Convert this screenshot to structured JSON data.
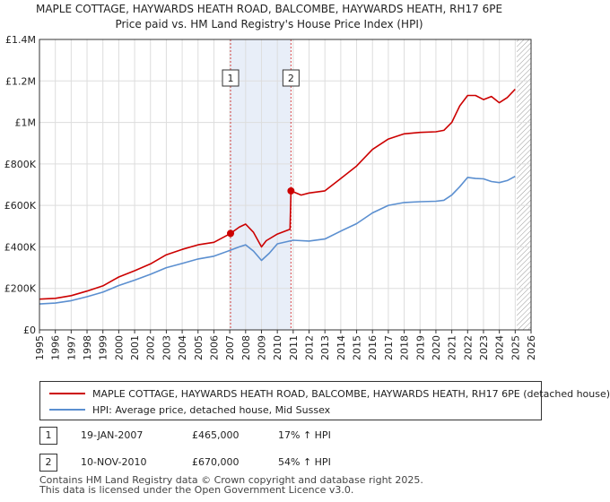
{
  "titles": {
    "line1": "MAPLE COTTAGE, HAYWARDS HEATH ROAD, BALCOMBE, HAYWARDS HEATH, RH17 6PE",
    "line2": "Price paid vs. HM Land Registry's House Price Index (HPI)"
  },
  "colors": {
    "price": "#cc0000",
    "hpi": "#5b8fd0",
    "shade": "#e8eef8",
    "grid": "#dddddd"
  },
  "chart_data": {
    "type": "line",
    "title": "Price paid vs. HM Land Registry's House Price Index (HPI)",
    "xlim": [
      1995,
      2026
    ],
    "ylim": [
      0,
      1400000
    ],
    "x_ticks": [
      1995,
      1996,
      1997,
      1998,
      1999,
      2000,
      2001,
      2002,
      2003,
      2004,
      2005,
      2006,
      2007,
      2008,
      2009,
      2010,
      2011,
      2012,
      2013,
      2014,
      2015,
      2016,
      2017,
      2018,
      2019,
      2020,
      2021,
      2022,
      2023,
      2024,
      2025,
      2026
    ],
    "y_ticks": [
      {
        "value": 0,
        "label": "£0"
      },
      {
        "value": 200000,
        "label": "£200K"
      },
      {
        "value": 400000,
        "label": "£400K"
      },
      {
        "value": 600000,
        "label": "£600K"
      },
      {
        "value": 800000,
        "label": "£800K"
      },
      {
        "value": 1000000,
        "label": "£1M"
      },
      {
        "value": 1200000,
        "label": "£1.2M"
      },
      {
        "value": 1400000,
        "label": "£1.4M"
      }
    ],
    "shaded_span": [
      2007.05,
      2010.86
    ],
    "future_hatch_from": 2025.1,
    "series": [
      {
        "name": "MAPLE COTTAGE, HAYWARDS HEATH ROAD, BALCOMBE, HAYWARDS HEATH, RH17 6PE (detached house)",
        "color": "#cc0000",
        "x": [
          1995.0,
          1996.0,
          1997.0,
          1998.0,
          1999.0,
          2000.0,
          2001.0,
          2002.0,
          2003.0,
          2004.0,
          2005.0,
          2006.0,
          2007.05,
          2007.6,
          2008.0,
          2008.5,
          2009.0,
          2009.3,
          2010.0,
          2010.8,
          2010.86,
          2011.5,
          2012.0,
          2013.0,
          2014.0,
          2015.0,
          2016.0,
          2017.0,
          2018.0,
          2019.0,
          2020.0,
          2020.5,
          2021.0,
          2021.5,
          2022.0,
          2022.5,
          2023.0,
          2023.5,
          2024.0,
          2024.5,
          2025.0
        ],
        "y": [
          148000,
          152000,
          165000,
          187000,
          212000,
          255000,
          285000,
          318000,
          362000,
          388000,
          410000,
          422000,
          465000,
          495000,
          510000,
          470000,
          400000,
          430000,
          462000,
          485000,
          670000,
          650000,
          660000,
          670000,
          730000,
          790000,
          870000,
          920000,
          945000,
          952000,
          955000,
          962000,
          1000000,
          1080000,
          1130000,
          1130000,
          1110000,
          1125000,
          1095000,
          1120000,
          1160000
        ]
      },
      {
        "name": "HPI: Average price, detached house, Mid Sussex",
        "color": "#5b8fd0",
        "x": [
          1995.0,
          1996.0,
          1997.0,
          1998.0,
          1999.0,
          2000.0,
          2001.0,
          2002.0,
          2003.0,
          2004.0,
          2005.0,
          2006.0,
          2007.0,
          2007.6,
          2008.0,
          2008.5,
          2009.0,
          2009.5,
          2010.0,
          2011.0,
          2012.0,
          2013.0,
          2014.0,
          2015.0,
          2016.0,
          2017.0,
          2018.0,
          2019.0,
          2020.0,
          2020.5,
          2021.0,
          2021.5,
          2022.0,
          2022.5,
          2023.0,
          2023.5,
          2024.0,
          2024.5,
          2025.0
        ],
        "y": [
          125000,
          129000,
          141000,
          160000,
          182000,
          214000,
          240000,
          268000,
          300000,
          320000,
          342000,
          355000,
          383000,
          400000,
          410000,
          380000,
          335000,
          370000,
          415000,
          432000,
          428000,
          438000,
          476000,
          512000,
          564000,
          600000,
          614000,
          618000,
          620000,
          625000,
          650000,
          690000,
          735000,
          730000,
          728000,
          715000,
          710000,
          720000,
          740000
        ]
      }
    ],
    "sales": [
      {
        "marker": "1",
        "x": 2007.05,
        "y": 465000,
        "date": "19-JAN-2007",
        "price": "£465,000",
        "hpi_change": "17% ↑ HPI"
      },
      {
        "marker": "2",
        "x": 2010.86,
        "y": 670000,
        "date": "10-NOV-2010",
        "price": "£670,000",
        "hpi_change": "54% ↑ HPI"
      }
    ]
  },
  "legend": {
    "price_label": "MAPLE COTTAGE, HAYWARDS HEATH ROAD, BALCOMBE, HAYWARDS HEATH, RH17 6PE (detached house)",
    "hpi_label": "HPI: Average price, detached house, Mid Sussex"
  },
  "footer": {
    "line1": "Contains HM Land Registry data © Crown copyright and database right 2025.",
    "line2": "This data is licensed under the Open Government Licence v3.0."
  }
}
